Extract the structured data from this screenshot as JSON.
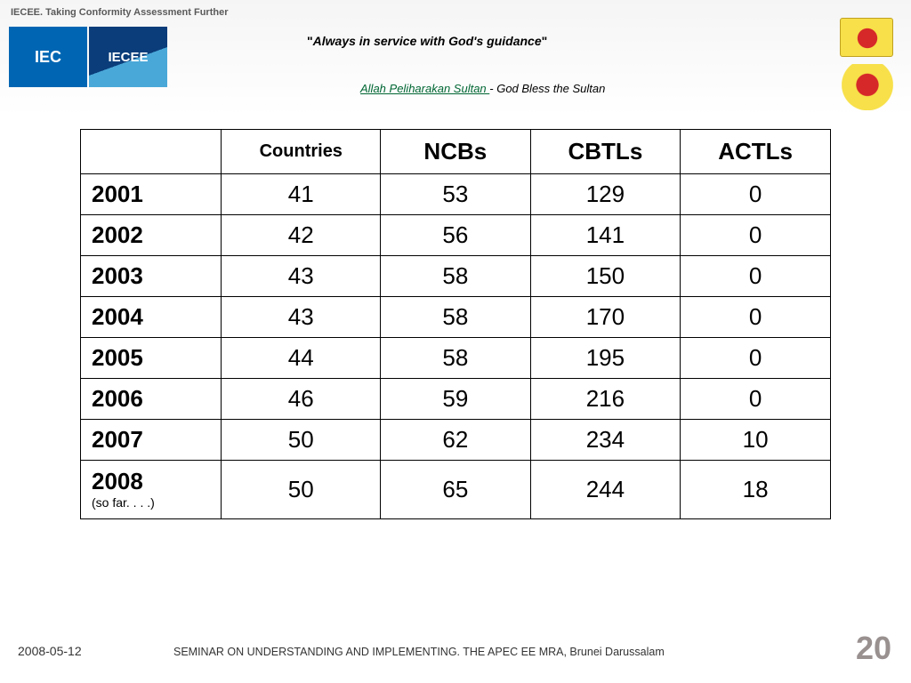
{
  "header": {
    "top_text": "IECEE. Taking Conformity Assessment Further",
    "motto_open_q": "\"",
    "motto": "Always in service with God's guidance",
    "motto_close_q": "\"",
    "blessing_underline": "Allah Peliharakan Sultan ",
    "blessing_rest": "- God Bless the Sultan",
    "logo_iec": "IEC",
    "logo_iecee": "IECEE"
  },
  "table": {
    "columns": [
      "Countries",
      "NCBs",
      "CBTLs",
      "ACTLs"
    ],
    "rows": [
      {
        "year": "2001",
        "values": [
          "41",
          "53",
          "129",
          "0"
        ]
      },
      {
        "year": "2002",
        "values": [
          "42",
          "56",
          "141",
          "0"
        ]
      },
      {
        "year": "2003",
        "values": [
          "43",
          "58",
          "150",
          "0"
        ]
      },
      {
        "year": "2004",
        "values": [
          "43",
          "58",
          "170",
          "0"
        ]
      },
      {
        "year": "2005",
        "values": [
          "44",
          "58",
          "195",
          "0"
        ]
      },
      {
        "year": "2006",
        "values": [
          "46",
          "59",
          "216",
          "0"
        ]
      },
      {
        "year": "2007",
        "values": [
          "50",
          "62",
          "234",
          "10"
        ]
      }
    ],
    "last_row": {
      "year": "2008",
      "note": "(so far. . . .)",
      "values": [
        "50",
        "65",
        "244",
        "18"
      ]
    },
    "header_font_size": 26,
    "cell_font_size": 26,
    "border_color": "#000000",
    "background": "#ffffff"
  },
  "footer": {
    "date": "2008-05-12",
    "text": "SEMINAR ON UNDERSTANDING AND IMPLEMENTING. THE APEC EE MRA, Brunei Darussalam",
    "page": "20"
  }
}
